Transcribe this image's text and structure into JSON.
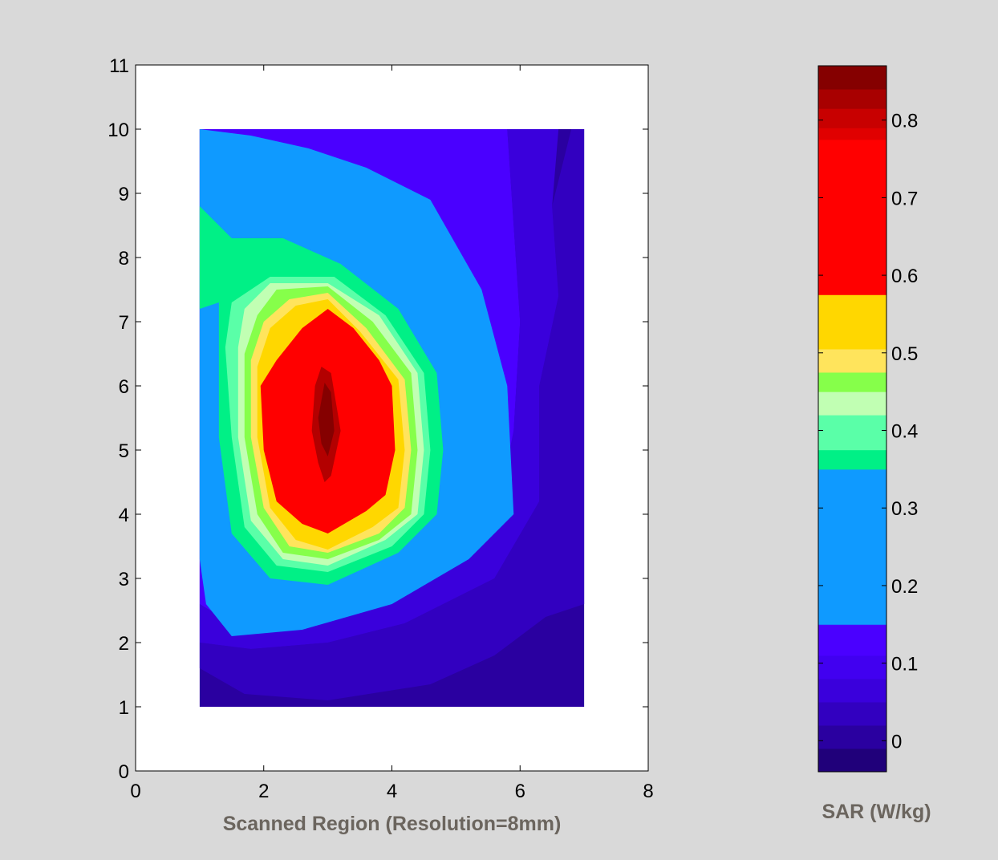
{
  "figure": {
    "background": "#d9d9d9",
    "axes_background": "#ffffff"
  },
  "chart_data": {
    "type": "contourf",
    "xlabel": "Scanned Region (Resolution=8mm)",
    "ylabel": "",
    "xlim": [
      0,
      8
    ],
    "ylim": [
      0,
      11
    ],
    "x_ticks": [
      0,
      2,
      4,
      6,
      8
    ],
    "y_ticks": [
      0,
      1,
      2,
      3,
      4,
      5,
      6,
      7,
      8,
      9,
      10,
      11
    ],
    "data_extent": {
      "x": [
        1,
        7
      ],
      "y": [
        1,
        10
      ]
    },
    "regions": [
      {
        "level": 0.15,
        "color": "#0f9aff",
        "polygon": [
          [
            1,
            10
          ],
          [
            1.8,
            9.9
          ],
          [
            2.7,
            9.7
          ],
          [
            3.6,
            9.4
          ],
          [
            4.6,
            8.9
          ],
          [
            5.4,
            7.5
          ],
          [
            5.8,
            6
          ],
          [
            5.9,
            4
          ],
          [
            5.2,
            3.3
          ],
          [
            4,
            2.6
          ],
          [
            2.6,
            2.2
          ],
          [
            1.5,
            2.1
          ],
          [
            1.1,
            2.6
          ],
          [
            1,
            3.3
          ]
        ]
      },
      {
        "level": 0.35,
        "color": "#00f086",
        "polygon": [
          [
            1,
            8.8
          ],
          [
            1.5,
            8.3
          ],
          [
            2.3,
            8.3
          ],
          [
            3.2,
            7.9
          ],
          [
            4.1,
            7.2
          ],
          [
            4.7,
            6.2
          ],
          [
            4.8,
            5
          ],
          [
            4.7,
            4
          ],
          [
            4.1,
            3.4
          ],
          [
            3,
            2.9
          ],
          [
            2.1,
            3
          ],
          [
            1.5,
            3.7
          ],
          [
            1.3,
            5.2
          ],
          [
            1.3,
            6.7
          ],
          [
            1.3,
            7.3
          ],
          [
            1,
            7.2
          ]
        ]
      },
      {
        "level": 0.4,
        "color": "#5affa8",
        "polygon": [
          [
            1.5,
            7.3
          ],
          [
            2.1,
            7.7
          ],
          [
            3.1,
            7.7
          ],
          [
            3.9,
            7.1
          ],
          [
            4.5,
            6.2
          ],
          [
            4.6,
            5
          ],
          [
            4.5,
            4
          ],
          [
            4,
            3.5
          ],
          [
            3,
            3.1
          ],
          [
            2.2,
            3.2
          ],
          [
            1.7,
            3.8
          ],
          [
            1.5,
            5.2
          ],
          [
            1.4,
            6.6
          ]
        ]
      },
      {
        "level": 0.45,
        "color": "#c1ffb3",
        "polygon": [
          [
            1.7,
            7.2
          ],
          [
            2.1,
            7.6
          ],
          [
            3,
            7.6
          ],
          [
            3.8,
            7.1
          ],
          [
            4.4,
            6.2
          ],
          [
            4.5,
            5
          ],
          [
            4.4,
            4
          ],
          [
            3.9,
            3.6
          ],
          [
            3,
            3.2
          ],
          [
            2.3,
            3.3
          ],
          [
            1.8,
            3.9
          ],
          [
            1.6,
            5.2
          ],
          [
            1.6,
            6.6
          ]
        ]
      },
      {
        "level": 0.475,
        "color": "#86ff4a",
        "polygon": [
          [
            1.9,
            7.1
          ],
          [
            2.2,
            7.5
          ],
          [
            3,
            7.55
          ],
          [
            3.7,
            7
          ],
          [
            4.3,
            6.2
          ],
          [
            4.4,
            5
          ],
          [
            4.3,
            4
          ],
          [
            3.8,
            3.6
          ],
          [
            3,
            3.3
          ],
          [
            2.3,
            3.4
          ],
          [
            1.9,
            4
          ],
          [
            1.7,
            5.2
          ],
          [
            1.7,
            6.5
          ]
        ]
      },
      {
        "level": 0.5,
        "color": "#ffe45c",
        "polygon": [
          [
            2,
            7
          ],
          [
            2.4,
            7.35
          ],
          [
            3,
            7.45
          ],
          [
            3.6,
            6.9
          ],
          [
            4.2,
            6.1
          ],
          [
            4.3,
            5
          ],
          [
            4.2,
            4.1
          ],
          [
            3.8,
            3.7
          ],
          [
            3,
            3.4
          ],
          [
            2.4,
            3.5
          ],
          [
            2,
            4.1
          ],
          [
            1.8,
            5.2
          ],
          [
            1.8,
            6.4
          ]
        ]
      },
      {
        "level": 0.55,
        "color": "#ffd700",
        "polygon": [
          [
            2.1,
            6.9
          ],
          [
            2.5,
            7.25
          ],
          [
            3,
            7.35
          ],
          [
            3.5,
            6.85
          ],
          [
            4.1,
            6.1
          ],
          [
            4.2,
            5
          ],
          [
            4.1,
            4.1
          ],
          [
            3.7,
            3.8
          ],
          [
            3,
            3.45
          ],
          [
            2.5,
            3.6
          ],
          [
            2.1,
            4.1
          ],
          [
            1.9,
            5.2
          ],
          [
            1.9,
            6.3
          ]
        ]
      },
      {
        "level": 0.6,
        "color": "#ff0000",
        "polygon": [
          [
            2.2,
            6.4
          ],
          [
            2.6,
            6.9
          ],
          [
            3,
            7.2
          ],
          [
            3.4,
            6.9
          ],
          [
            3.8,
            6.4
          ],
          [
            4,
            6
          ],
          [
            4.05,
            5
          ],
          [
            3.9,
            4.3
          ],
          [
            3.6,
            4.05
          ],
          [
            3,
            3.7
          ],
          [
            2.6,
            3.85
          ],
          [
            2.2,
            4.2
          ],
          [
            2,
            5
          ],
          [
            1.95,
            6
          ]
        ]
      },
      {
        "level": 0.75,
        "color": "#b30000",
        "polygon": [
          [
            2.9,
            6.3
          ],
          [
            3.05,
            6.2
          ],
          [
            3.2,
            5.3
          ],
          [
            3.05,
            4.6
          ],
          [
            2.95,
            4.5
          ],
          [
            2.85,
            4.8
          ],
          [
            2.75,
            5.3
          ],
          [
            2.8,
            6
          ]
        ]
      },
      {
        "level": 0.8,
        "color": "#850000",
        "polygon": [
          [
            2.95,
            6.05
          ],
          [
            3.05,
            5.9
          ],
          [
            3.1,
            5.3
          ],
          [
            3,
            4.9
          ],
          [
            2.9,
            5.1
          ],
          [
            2.85,
            5.5
          ]
        ]
      }
    ],
    "colorbar": {
      "label": "SAR (W/kg)",
      "range": [
        -0.04,
        0.87
      ],
      "ticks": [
        0,
        0.1,
        0.2,
        0.3,
        0.4,
        0.5,
        0.6,
        0.7,
        0.8
      ],
      "tick_labels": [
        "0",
        "0.1",
        "0.2",
        "0.3",
        "0.4",
        "0.5",
        "0.6",
        "0.7",
        "0.8"
      ],
      "bands": [
        {
          "from": -0.04,
          "to": -0.01,
          "color": "#20007a"
        },
        {
          "from": -0.01,
          "to": 0.02,
          "color": "#2a00a0"
        },
        {
          "from": 0.02,
          "to": 0.05,
          "color": "#3200c0"
        },
        {
          "from": 0.05,
          "to": 0.08,
          "color": "#3a00dc"
        },
        {
          "from": 0.08,
          "to": 0.11,
          "color": "#4100f0"
        },
        {
          "from": 0.11,
          "to": 0.15,
          "color": "#4a00ff"
        },
        {
          "from": 0.15,
          "to": 0.35,
          "color": "#0f9aff"
        },
        {
          "from": 0.35,
          "to": 0.375,
          "color": "#00f086"
        },
        {
          "from": 0.375,
          "to": 0.42,
          "color": "#5affa8"
        },
        {
          "from": 0.42,
          "to": 0.45,
          "color": "#c1ffb3"
        },
        {
          "from": 0.45,
          "to": 0.475,
          "color": "#86ff4a"
        },
        {
          "from": 0.475,
          "to": 0.505,
          "color": "#ffe45c"
        },
        {
          "from": 0.505,
          "to": 0.575,
          "color": "#ffd700"
        },
        {
          "from": 0.575,
          "to": 0.775,
          "color": "#ff0000"
        },
        {
          "from": 0.775,
          "to": 0.79,
          "color": "#e00000"
        },
        {
          "from": 0.79,
          "to": 0.815,
          "color": "#c80000"
        },
        {
          "from": 0.815,
          "to": 0.84,
          "color": "#a80000"
        },
        {
          "from": 0.84,
          "to": 0.87,
          "color": "#850000"
        }
      ]
    }
  }
}
